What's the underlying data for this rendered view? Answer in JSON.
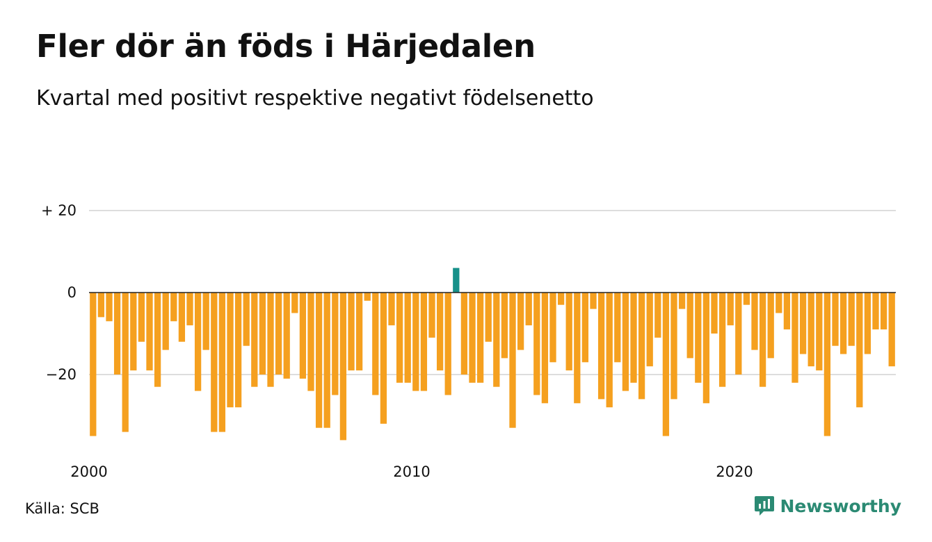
{
  "title": "Fler dör än föds i Härjedalen",
  "subtitle": "Kvartal med positivt respektive negativt födelsenetto",
  "source": "Källa: SCB",
  "brand": {
    "name": "Newsworthy",
    "icon": "newsworthy-logo-icon"
  },
  "colors": {
    "negative": "#f5a01f",
    "positive": "#17918a",
    "brand": "#2b8a73",
    "grid": "#dddddd",
    "zero_line": "#222222"
  },
  "chart_data": {
    "type": "bar",
    "title": "Fler dör än föds i Härjedalen",
    "subtitle": "Kvartal med positivt respektive negativt födelsenetto",
    "xlabel": "",
    "ylabel": "",
    "x_start": "2000 Q1",
    "frequency": "quarterly",
    "x_ticks": [
      {
        "label": "2000",
        "index": 0
      },
      {
        "label": "2010",
        "index": 40
      },
      {
        "label": "2020",
        "index": 80
      }
    ],
    "y_ticks": [
      {
        "label": "+ 20",
        "value": 20
      },
      {
        "label": "0",
        "value": 0
      },
      {
        "label": "−20",
        "value": -20
      }
    ],
    "ylim": [
      -36,
      20
    ],
    "grid": true,
    "values": [
      -35,
      -6,
      -7,
      -20,
      -34,
      -19,
      -12,
      -19,
      -23,
      -14,
      -7,
      -12,
      -8,
      -24,
      -14,
      -34,
      -34,
      -28,
      -28,
      -13,
      -23,
      -20,
      -23,
      -20,
      -21,
      -5,
      -21,
      -24,
      -33,
      -33,
      -25,
      -36,
      -19,
      -19,
      -2,
      -25,
      -32,
      -8,
      -22,
      -22,
      -24,
      -24,
      -11,
      -19,
      -25,
      6,
      -20,
      -22,
      -22,
      -12,
      -23,
      -16,
      -33,
      -14,
      -8,
      -25,
      -27,
      -17,
      -3,
      -19,
      -27,
      -17,
      -4,
      -26,
      -28,
      -17,
      -24,
      -22,
      -26,
      -18,
      -11,
      -35,
      -26,
      -4,
      -16,
      -22,
      -27,
      -10,
      -23,
      -8,
      -20,
      -3,
      -14,
      -23,
      -16,
      -5,
      -9,
      -22,
      -15,
      -18,
      -19,
      -35,
      -13,
      -15,
      -13,
      -28,
      -15,
      -9,
      -9,
      -18
    ]
  }
}
